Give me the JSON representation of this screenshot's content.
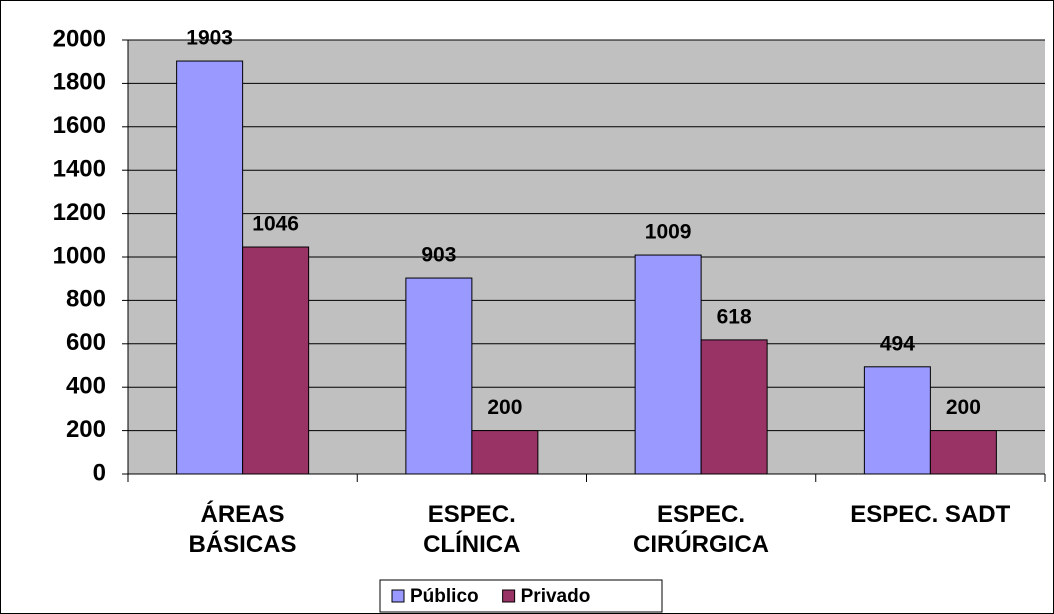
{
  "chart_data": {
    "type": "bar",
    "categories": [
      "ÁREAS\nBÁSICAS",
      "ESPEC.\nCLÍNICA",
      "ESPEC.\nCIRÚRGICA",
      "ESPEC. SADT"
    ],
    "series": [
      {
        "name": "Público",
        "color": "#9999ff",
        "values": [
          1903,
          903,
          1009,
          494
        ]
      },
      {
        "name": "Privado",
        "color": "#993366",
        "values": [
          1046,
          200,
          618,
          200
        ]
      }
    ],
    "ylim": [
      0,
      2000
    ],
    "yticks": [
      0,
      200,
      400,
      600,
      800,
      1000,
      1200,
      1400,
      1600,
      1800,
      2000
    ],
    "grid": true,
    "legend": "bottom"
  }
}
